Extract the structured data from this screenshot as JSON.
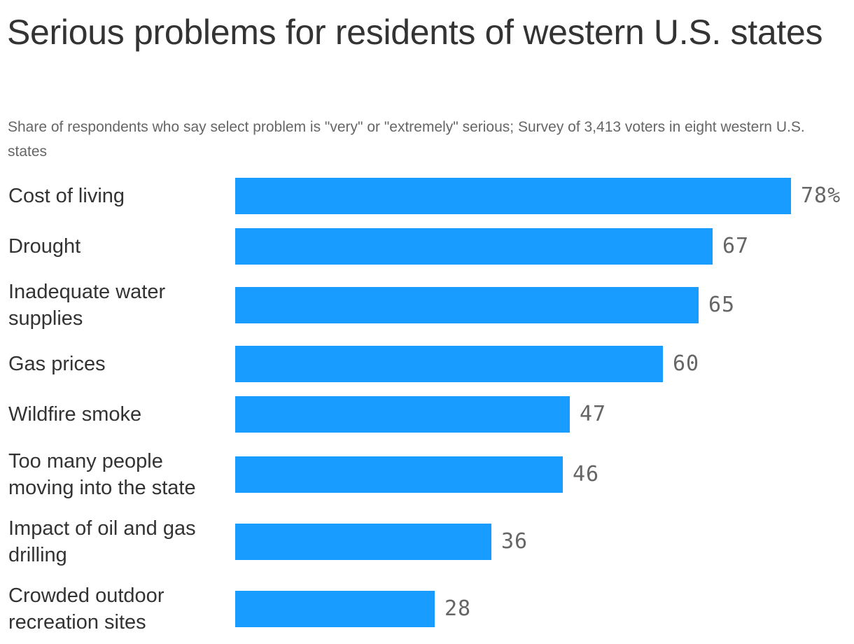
{
  "title": "Serious problems for residents of western U.S. states",
  "subtitle": "Share of respondents who say select problem is \"very\" or \"extremely\" serious; Survey of 3,413 voters in eight western U.S. states",
  "colors": {
    "bar": "#189cff",
    "title": "#333333",
    "subtitle": "#666666",
    "value_label": "#666666"
  },
  "chart_data": {
    "type": "bar",
    "orientation": "horizontal",
    "title": "Serious problems for residents of western U.S. states",
    "subtitle": "Share of respondents who say select problem is \"very\" or \"extremely\" serious; Survey of 3,413 voters in eight western U.S. states",
    "xlabel": "",
    "ylabel": "",
    "xlim": [
      0,
      78
    ],
    "grid": false,
    "legend": "none",
    "categories": [
      "Cost of living",
      "Drought",
      "Inadequate water supplies",
      "Gas prices",
      "Wildfire smoke",
      "Too many people moving into the state",
      "Impact of oil and gas drilling",
      "Crowded outdoor recreation sites"
    ],
    "values": [
      78,
      67,
      65,
      60,
      47,
      46,
      36,
      28
    ],
    "value_labels": [
      "78%",
      "67",
      "65",
      "60",
      "47",
      "46",
      "36",
      "28"
    ]
  }
}
